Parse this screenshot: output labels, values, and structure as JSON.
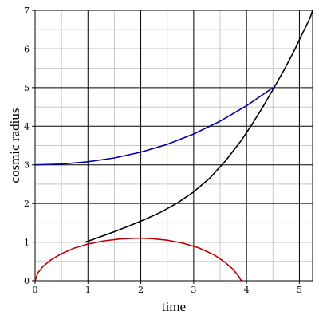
{
  "chart_data": {
    "type": "line",
    "xlabel": "time",
    "ylabel": "cosmic radius",
    "xlim": [
      0,
      5.25
    ],
    "ylim": [
      0,
      7
    ],
    "x_ticks": [
      0,
      1,
      2,
      3,
      4,
      5
    ],
    "y_ticks": [
      0,
      1,
      2,
      3,
      4,
      5,
      6,
      7
    ],
    "x_minor_step": 0.5,
    "y_minor_step": 0.5,
    "grid": true,
    "series": [
      {
        "color": "#000000",
        "x": [
          0.95,
          1.2,
          1.5,
          1.8,
          2.1,
          2.4,
          2.7,
          3.0,
          3.3,
          3.6,
          3.9,
          4.1,
          4.3,
          4.5,
          4.7,
          4.9,
          5.05,
          5.2,
          5.25
        ],
        "y": [
          1.0,
          1.12,
          1.27,
          1.43,
          1.6,
          1.79,
          2.02,
          2.3,
          2.65,
          3.1,
          3.63,
          4.04,
          4.48,
          4.95,
          5.43,
          5.95,
          6.38,
          6.8,
          7.0
        ]
      },
      {
        "color": "#0000a0",
        "x": [
          0.0,
          0.5,
          1.0,
          1.5,
          2.0,
          2.5,
          3.0,
          3.5,
          4.0,
          4.5
        ],
        "y": [
          3.0,
          3.02,
          3.08,
          3.18,
          3.33,
          3.53,
          3.8,
          4.13,
          4.53,
          5.0
        ]
      },
      {
        "color": "#c00000",
        "x": [
          0.0,
          0.05,
          0.15,
          0.3,
          0.5,
          0.75,
          1.0,
          1.3,
          1.6,
          1.9,
          2.0,
          2.2,
          2.5,
          2.8,
          3.1,
          3.4,
          3.6,
          3.75,
          3.85,
          3.9
        ],
        "y": [
          0.0,
          0.2,
          0.37,
          0.54,
          0.7,
          0.85,
          0.95,
          1.03,
          1.08,
          1.1,
          1.1,
          1.09,
          1.05,
          0.97,
          0.85,
          0.66,
          0.47,
          0.29,
          0.12,
          0.0
        ]
      }
    ]
  }
}
